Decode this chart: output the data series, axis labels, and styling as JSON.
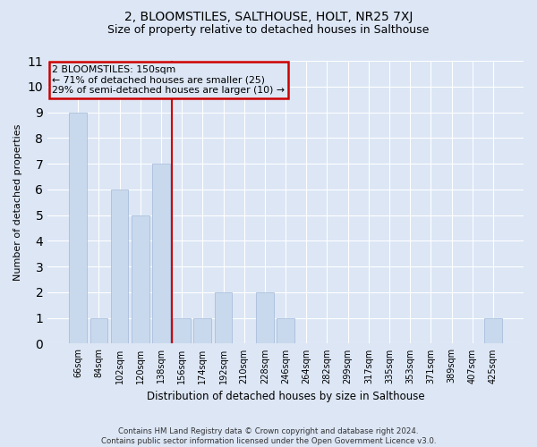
{
  "title": "2, BLOOMSTILES, SALTHOUSE, HOLT, NR25 7XJ",
  "subtitle": "Size of property relative to detached houses in Salthouse",
  "xlabel": "Distribution of detached houses by size in Salthouse",
  "ylabel": "Number of detached properties",
  "categories": [
    "66sqm",
    "84sqm",
    "102sqm",
    "120sqm",
    "138sqm",
    "156sqm",
    "174sqm",
    "192sqm",
    "210sqm",
    "228sqm",
    "246sqm",
    "264sqm",
    "282sqm",
    "299sqm",
    "317sqm",
    "335sqm",
    "353sqm",
    "371sqm",
    "389sqm",
    "407sqm",
    "425sqm"
  ],
  "values": [
    9,
    1,
    6,
    5,
    7,
    1,
    1,
    2,
    0,
    2,
    1,
    0,
    0,
    0,
    0,
    0,
    0,
    0,
    0,
    0,
    1
  ],
  "bar_color": "#c9d9ed",
  "bar_edgecolor": "#a0b8d8",
  "ylim": [
    0,
    11
  ],
  "yticks": [
    0,
    1,
    2,
    3,
    4,
    5,
    6,
    7,
    8,
    9,
    10,
    11
  ],
  "annotation_line1": "2 BLOOMSTILES: 150sqm",
  "annotation_line2": "← 71% of detached houses are smaller (25)",
  "annotation_line3": "29% of semi-detached houses are larger (10) →",
  "vline_x": 4.5,
  "box_color": "#cc0000",
  "footer": "Contains HM Land Registry data © Crown copyright and database right 2024.\nContains public sector information licensed under the Open Government Licence v3.0.",
  "background_color": "#dce6f5",
  "grid_color": "#ffffff",
  "title_fontsize": 10,
  "subtitle_fontsize": 9
}
